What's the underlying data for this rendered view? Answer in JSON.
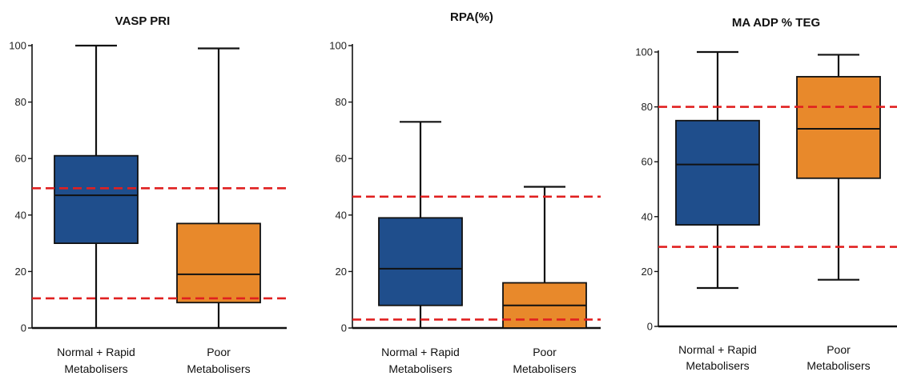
{
  "chart_data": [
    {
      "type": "boxplot",
      "title": "VASP PRI",
      "categories": [
        "Normal + Rapid\nMetabolisers",
        "Poor\nMetabolisers"
      ],
      "ylim": [
        0,
        100
      ],
      "yticks": [
        0,
        20,
        40,
        60,
        80,
        100
      ],
      "boxes": [
        {
          "min": 0,
          "q1": 30,
          "median": 47,
          "q3": 61,
          "max": 100,
          "color": "#1f4e8c"
        },
        {
          "min": 0,
          "q1": 9,
          "median": 19,
          "q3": 37,
          "max": 99,
          "color": "#e8892b"
        }
      ],
      "reference_lines": [
        49.5,
        10.5
      ],
      "reference_line_color": "#e02020",
      "grid": false
    },
    {
      "type": "boxplot",
      "title": "RPA(%)",
      "categories": [
        "Normal + Rapid\nMetabolisers",
        "Poor\nMetabolisers"
      ],
      "ylim": [
        0,
        100
      ],
      "yticks": [
        0,
        20,
        40,
        60,
        80,
        100
      ],
      "boxes": [
        {
          "min": 0,
          "q1": 8,
          "median": 21,
          "q3": 39,
          "max": 73,
          "color": "#1f4e8c"
        },
        {
          "min": 0,
          "q1": 0,
          "median": 8,
          "q3": 16,
          "max": 50,
          "color": "#e8892b"
        }
      ],
      "reference_lines": [
        46.5,
        3
      ],
      "reference_line_color": "#e02020",
      "grid": false
    },
    {
      "type": "boxplot",
      "title": "MA ADP % TEG",
      "categories": [
        "Normal + Rapid\nMetabolisers",
        "Poor\nMetabolisers"
      ],
      "ylim": [
        0,
        100
      ],
      "yticks": [
        0,
        20,
        40,
        60,
        80,
        100
      ],
      "boxes": [
        {
          "min": 14,
          "q1": 37,
          "median": 59,
          "q3": 75,
          "max": 100,
          "color": "#1f4e8c"
        },
        {
          "min": 17,
          "q1": 54,
          "median": 72,
          "q3": 91,
          "max": 99,
          "color": "#e8892b"
        }
      ],
      "reference_lines": [
        80,
        29
      ],
      "reference_line_color": "#e02020",
      "grid": false
    }
  ]
}
